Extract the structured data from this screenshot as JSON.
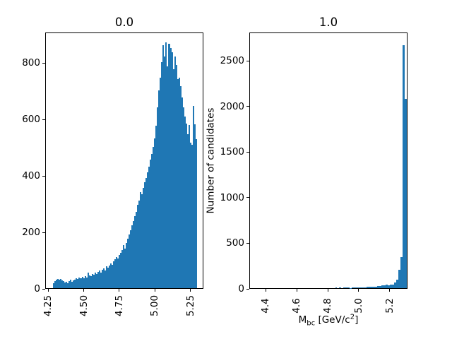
{
  "figure": {
    "background": "#ffffff",
    "bar_color": "#1f77b4",
    "axis_color": "#000000"
  },
  "chart_data": [
    {
      "type": "bar",
      "subtype": "histogram",
      "title": "0.0",
      "xlabel": "",
      "ylabel": "",
      "bar_color": "#1f77b4",
      "bin_start": 4.28,
      "bin_width": 0.01,
      "values": [
        18,
        25,
        30,
        33,
        30,
        32,
        28,
        25,
        20,
        22,
        18,
        25,
        30,
        22,
        28,
        30,
        35,
        32,
        38,
        35,
        40,
        36,
        42,
        38,
        55,
        45,
        42,
        50,
        48,
        55,
        50,
        58,
        62,
        55,
        64,
        70,
        62,
        78,
        72,
        80,
        88,
        82,
        95,
        102,
        110,
        105,
        118,
        125,
        135,
        153,
        140,
        160,
        175,
        190,
        205,
        222,
        238,
        255,
        270,
        295,
        310,
        340,
        332,
        355,
        375,
        391,
        410,
        430,
        455,
        475,
        500,
        530,
        575,
        640,
        700,
        745,
        800,
        860,
        820,
        870,
        786,
        865,
        850,
        835,
        774,
        820,
        790,
        741,
        745,
        715,
        674,
        640,
        608,
        582,
        545,
        578,
        515,
        508,
        645,
        580,
        528
      ],
      "xlim": [
        4.2295,
        5.3405
      ],
      "ylim": [
        0,
        907.5
      ],
      "xticks": [
        4.25,
        4.5,
        4.75,
        5.0,
        5.25
      ],
      "xtick_labels": [
        "4.25",
        "4.50",
        "4.75",
        "5.00",
        "5.25"
      ],
      "yticks": [
        0,
        200,
        400,
        600,
        800
      ],
      "ytick_labels": [
        "0",
        "200",
        "400",
        "600",
        "800"
      ],
      "xtick_rotation": 90,
      "grid": false,
      "legend": null
    },
    {
      "type": "bar",
      "subtype": "histogram",
      "title": "1.0",
      "xlabel": "M_bc [GeV/c^2]",
      "xlabel_parts": {
        "main": "M",
        "sub": "bc",
        "unit_pre": " [GeV/c",
        "sup": "2",
        "unit_post": "]"
      },
      "ylabel": "Number of candidates",
      "bar_color": "#1f77b4",
      "bin_start": 4.34,
      "bin_width": 0.0136,
      "values": [
        0,
        0,
        0,
        0,
        0,
        0,
        0,
        0,
        0,
        0,
        0,
        0,
        0,
        0,
        0,
        0,
        0,
        0,
        0,
        0,
        0,
        0,
        0,
        0,
        0,
        0,
        0,
        0,
        0,
        0,
        0,
        0,
        0,
        0,
        0,
        0,
        0,
        8,
        0,
        4,
        0,
        6,
        4,
        7,
        3,
        6,
        4,
        6,
        8,
        9,
        11,
        10,
        13,
        12,
        15,
        14,
        17,
        20,
        24,
        28,
        33,
        38,
        30,
        35,
        39,
        60,
        93,
        202,
        342,
        2663,
        2072
      ],
      "xlim": [
        4.295,
        5.314
      ],
      "ylim": [
        0,
        2810
      ],
      "xticks": [
        4.4,
        4.6,
        4.8,
        5.0,
        5.2
      ],
      "xtick_labels": [
        "4.4",
        "4.6",
        "4.8",
        "5.0",
        "5.2"
      ],
      "yticks": [
        0,
        500,
        1000,
        1500,
        2000,
        2500
      ],
      "ytick_labels": [
        "0",
        "500",
        "1000",
        "1500",
        "2000",
        "2500"
      ],
      "xtick_rotation": 90,
      "grid": false,
      "legend": null
    }
  ]
}
